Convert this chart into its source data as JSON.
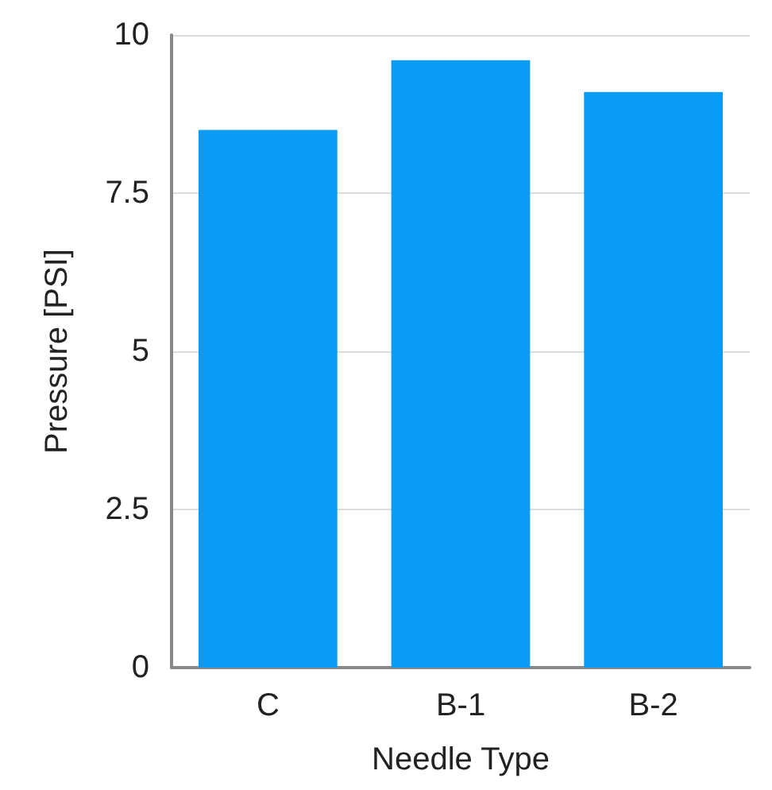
{
  "chart_data": {
    "type": "bar",
    "xlabel": "Needle Type",
    "ylabel": "Pressure [PSI]",
    "categories": [
      "C",
      "B-1",
      "B-2"
    ],
    "values": [
      8.5,
      9.6,
      9.1
    ],
    "color": "#0a9cf5",
    "ylim": [
      0,
      10
    ],
    "yticks": [
      0,
      2.5,
      5,
      7.5,
      10
    ],
    "grid": "y"
  }
}
